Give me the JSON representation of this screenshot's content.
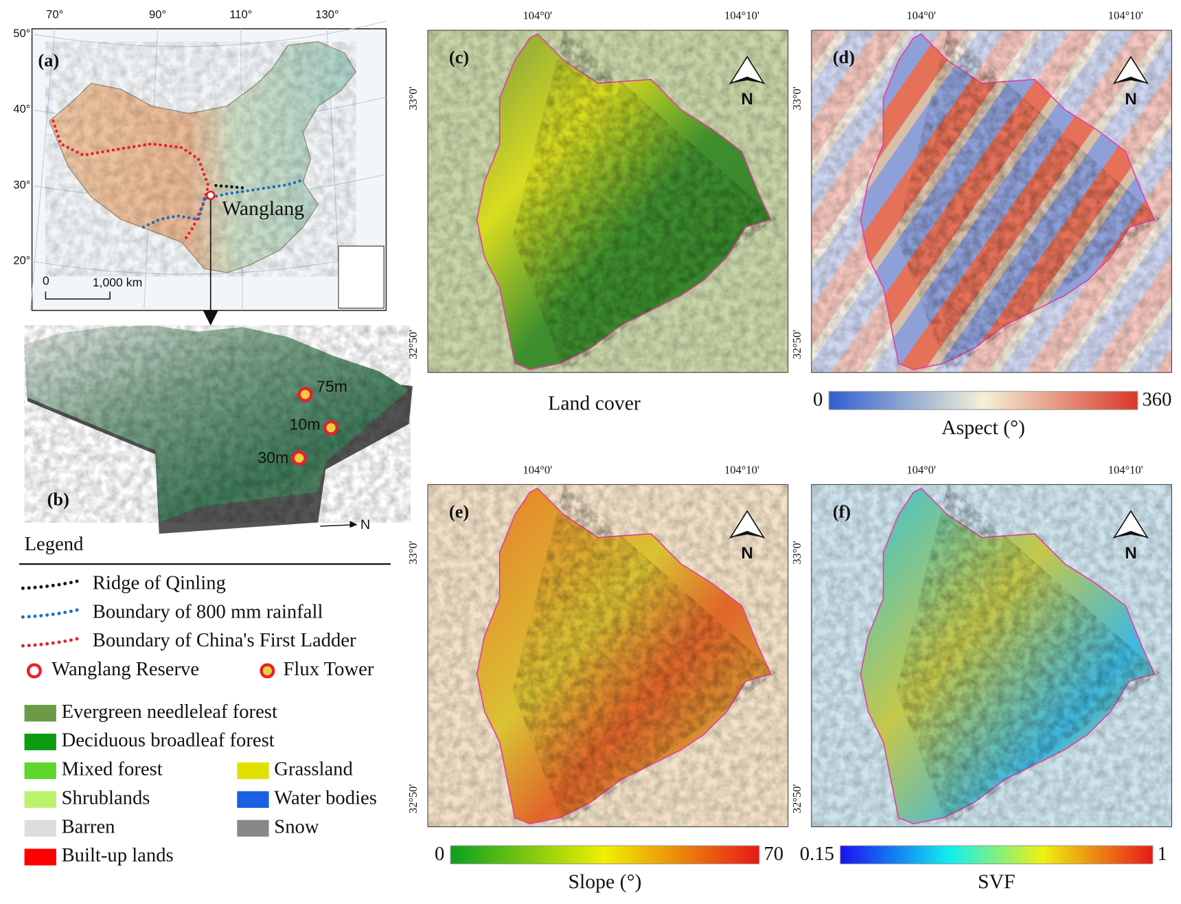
{
  "panel_a": {
    "label": "(a)",
    "lon_labels": [
      "70°",
      "90°",
      "110°",
      "130°"
    ],
    "lat_labels": [
      "50°",
      "40°",
      "30°",
      "20°"
    ],
    "scale_labels": [
      "0",
      "1,000 km"
    ],
    "place": "Wanglang"
  },
  "panel_b": {
    "label": "(b)",
    "towers": [
      "75m",
      "10m",
      "30m"
    ],
    "north": "N"
  },
  "legend": {
    "title": "Legend",
    "lines": [
      {
        "label": "Ridge of Qinling",
        "color": "#111111"
      },
      {
        "label": "Boundary of 800 mm rainfall",
        "color": "#1f6fc0"
      },
      {
        "label": "Boundary of China's First Ladder",
        "color": "#e8202a"
      }
    ],
    "markers": [
      {
        "label": "Wanglang Reserve"
      },
      {
        "label": "Flux Tower"
      }
    ],
    "land_cover": [
      {
        "label": "Evergreen needleleaf forest",
        "color": "#6b9b47"
      },
      {
        "label": "Deciduous broadleaf forest",
        "color": "#0c9c12"
      },
      {
        "label": "Mixed forest",
        "color": "#5fd62c"
      },
      {
        "label": "Grassland",
        "color": "#e2e000"
      },
      {
        "label": "Shrublands",
        "color": "#bbf26c"
      },
      {
        "label": "Water bodies",
        "color": "#1a60e2"
      },
      {
        "label": "Barren",
        "color": "#dddddd"
      },
      {
        "label": "Snow",
        "color": "#888888"
      },
      {
        "label": "Built-up lands",
        "color": "#ff0000"
      }
    ]
  },
  "maps": [
    {
      "label": "(c)",
      "lon_labels": [
        "104°0'",
        "104°10'"
      ],
      "lat_labels": [
        "33°0'",
        "32°50'"
      ],
      "north": "N",
      "caption": "Land cover"
    },
    {
      "label": "(d)",
      "lon_labels": [
        "104°0'",
        "104°10'"
      ],
      "lat_labels": [
        "33°0'",
        "32°50'"
      ],
      "north": "N",
      "colorbar": {
        "min": 0,
        "max": 360,
        "caption": "Aspect (°)"
      }
    },
    {
      "label": "(e)",
      "lon_labels": [
        "104°0'",
        "104°10'"
      ],
      "lat_labels": [
        "33°0'",
        "32°50'"
      ],
      "north": "N",
      "colorbar": {
        "min": 0,
        "max": 70,
        "caption": "Slope (°)"
      }
    },
    {
      "label": "(f)",
      "lon_labels": [
        "104°0'",
        "104°10'"
      ],
      "lat_labels": [
        "33°0'",
        "32°50'"
      ],
      "north": "N",
      "colorbar": {
        "min": 0.15,
        "max": 1,
        "caption": "SVF"
      }
    }
  ]
}
